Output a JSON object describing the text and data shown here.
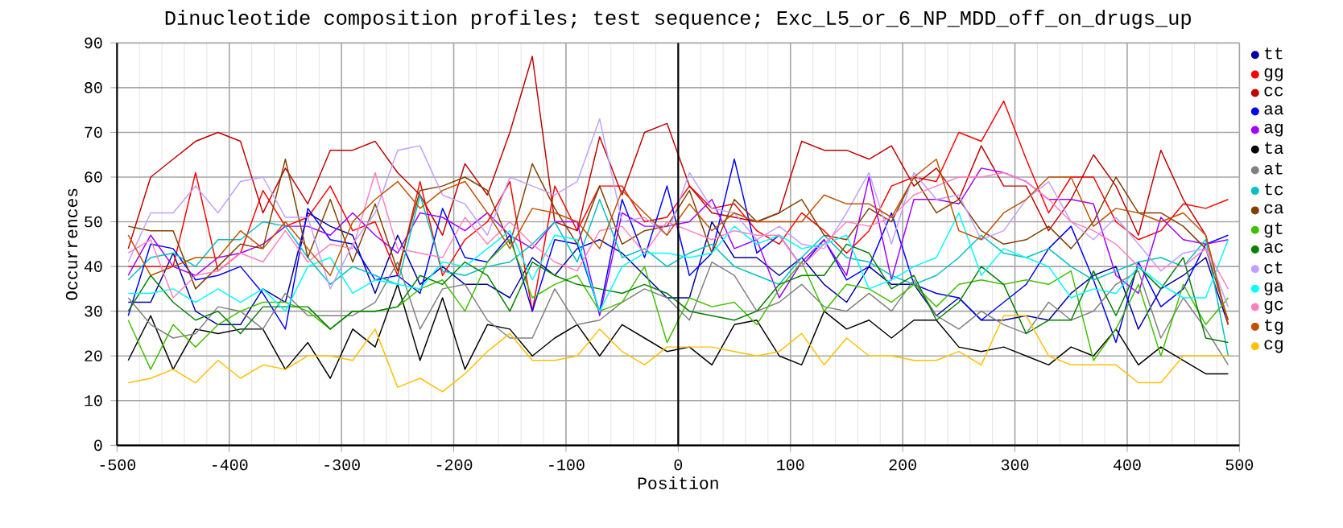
{
  "chart_data": {
    "type": "line",
    "title": "Dinucleotide composition profiles; test sequence; Exc_L5_or_6_NP_MDD_off_on_drugs_up",
    "xlabel": "Position",
    "ylabel": "Occurrences",
    "xlim": [
      -500,
      500
    ],
    "ylim": [
      0,
      90
    ],
    "xticks": [
      -500,
      -400,
      -300,
      -200,
      -100,
      0,
      100,
      200,
      300,
      400,
      500
    ],
    "yticks": [
      0,
      10,
      20,
      30,
      40,
      50,
      60,
      70,
      80,
      90
    ],
    "grid": true,
    "legend": "right",
    "marker": "none",
    "line_style": "solid",
    "ref_lines": [
      {
        "axis": "x",
        "value": 0,
        "color": "#000000"
      }
    ],
    "x": [
      -490,
      -470,
      -450,
      -430,
      -410,
      -390,
      -370,
      -350,
      -330,
      -310,
      -290,
      -270,
      -250,
      -230,
      -210,
      -190,
      -170,
      -150,
      -130,
      -110,
      -90,
      -70,
      -50,
      -30,
      -10,
      10,
      30,
      50,
      70,
      90,
      110,
      130,
      150,
      170,
      190,
      210,
      230,
      250,
      270,
      290,
      310,
      330,
      350,
      370,
      390,
      410,
      430,
      450,
      470,
      490
    ],
    "series": [
      {
        "name": "tt",
        "color": "#0000a0",
        "values": [
          32,
          32,
          43,
          30,
          27,
          27,
          35,
          32,
          52,
          49,
          47,
          34,
          47,
          36,
          40,
          36,
          36,
          33,
          42,
          38,
          44,
          46,
          43,
          38,
          33,
          33,
          50,
          42,
          42,
          38,
          42,
          36,
          32,
          40,
          36,
          36,
          29,
          33,
          28,
          28,
          29,
          28,
          34,
          38,
          40,
          26,
          35,
          38,
          42,
          27
        ]
      },
      {
        "name": "gg",
        "color": "#ff0000",
        "values": [
          40,
          40,
          40,
          61,
          39,
          43,
          57,
          49,
          51,
          58,
          48,
          50,
          38,
          59,
          38,
          46,
          50,
          59,
          30,
          58,
          48,
          58,
          58,
          50,
          51,
          58,
          53,
          54,
          48,
          45,
          52,
          48,
          43,
          48,
          58,
          60,
          59,
          70,
          68,
          77,
          64,
          52,
          60,
          60,
          50,
          46,
          48,
          54,
          53,
          55
        ]
      },
      {
        "name": "cc",
        "color": "#c00000",
        "values": [
          44,
          60,
          64,
          68,
          70,
          68,
          52,
          62,
          54,
          66,
          66,
          68,
          61,
          56,
          47,
          63,
          56,
          70,
          87,
          50,
          48,
          69,
          56,
          70,
          72,
          58,
          52,
          51,
          50,
          52,
          68,
          66,
          66,
          64,
          67,
          58,
          62,
          55,
          67,
          58,
          58,
          48,
          55,
          65,
          58,
          47,
          66,
          55,
          47,
          27
        ]
      },
      {
        "name": "aa",
        "color": "#0000ff",
        "values": [
          29,
          45,
          44,
          37,
          38,
          40,
          34,
          26,
          53,
          46,
          45,
          37,
          38,
          34,
          53,
          42,
          41,
          47,
          30,
          46,
          45,
          30,
          55,
          42,
          58,
          38,
          43,
          64,
          43,
          47,
          40,
          46,
          37,
          40,
          52,
          36,
          34,
          33,
          28,
          32,
          36,
          44,
          49,
          37,
          23,
          41,
          31,
          35,
          45,
          47
        ]
      },
      {
        "name": "ag",
        "color": "#a000ff",
        "values": [
          38,
          47,
          40,
          38,
          42,
          43,
          45,
          49,
          49,
          47,
          52,
          47,
          43,
          52,
          51,
          48,
          52,
          47,
          44,
          50,
          50,
          29,
          52,
          49,
          49,
          50,
          55,
          44,
          46,
          33,
          41,
          46,
          38,
          60,
          37,
          55,
          55,
          54,
          62,
          61,
          59,
          55,
          55,
          54,
          38,
          34,
          51,
          46,
          45,
          46
        ]
      },
      {
        "name": "ta",
        "color": "#000000",
        "values": [
          19,
          29,
          17,
          26,
          25,
          26,
          26,
          17,
          23,
          15,
          26,
          22,
          36,
          19,
          33,
          17,
          27,
          26,
          20,
          24,
          27,
          20,
          27,
          24,
          21,
          22,
          18,
          27,
          28,
          20,
          18,
          30,
          26,
          28,
          24,
          28,
          28,
          22,
          21,
          22,
          20,
          18,
          22,
          20,
          26,
          18,
          22,
          19,
          16,
          16
        ]
      },
      {
        "name": "at",
        "color": "#808080",
        "values": [
          33,
          27,
          24,
          25,
          31,
          30,
          26,
          34,
          29,
          29,
          29,
          32,
          41,
          26,
          35,
          36,
          28,
          24,
          24,
          35,
          27,
          28,
          32,
          35,
          33,
          28,
          41,
          38,
          30,
          32,
          36,
          31,
          30,
          34,
          30,
          37,
          29,
          26,
          30,
          27,
          25,
          32,
          28,
          30,
          36,
          39,
          24,
          33,
          26,
          18
        ]
      },
      {
        "name": "tc",
        "color": "#00c0c0",
        "values": [
          37,
          42,
          43,
          40,
          46,
          46,
          50,
          49,
          42,
          36,
          40,
          38,
          36,
          56,
          39,
          38,
          40,
          41,
          45,
          50,
          41,
          55,
          42,
          44,
          40,
          43,
          45,
          40,
          38,
          36,
          42,
          47,
          42,
          41,
          38,
          36,
          38,
          42,
          47,
          43,
          42,
          44,
          40,
          37,
          39,
          41,
          42,
          40,
          46,
          20
        ]
      },
      {
        "name": "ca",
        "color": "#804000",
        "values": [
          49,
          48,
          48,
          35,
          40,
          45,
          44,
          64,
          42,
          55,
          41,
          54,
          39,
          57,
          58,
          60,
          57,
          45,
          63,
          53,
          45,
          58,
          45,
          48,
          49,
          57,
          43,
          55,
          50,
          52,
          55,
          47,
          46,
          53,
          50,
          60,
          52,
          55,
          48,
          45,
          46,
          49,
          44,
          50,
          60,
          52,
          52,
          49,
          44,
          28
        ]
      },
      {
        "name": "gt",
        "color": "#40c000",
        "values": [
          28,
          17,
          27,
          22,
          27,
          30,
          32,
          32,
          30,
          26,
          30,
          30,
          31,
          35,
          37,
          30,
          41,
          46,
          33,
          36,
          38,
          30,
          32,
          40,
          23,
          33,
          31,
          32,
          27,
          35,
          41,
          30,
          36,
          35,
          32,
          36,
          31,
          36,
          37,
          36,
          37,
          36,
          39,
          19,
          26,
          36,
          20,
          36,
          27,
          33
        ]
      },
      {
        "name": "ac",
        "color": "#008000",
        "values": [
          30,
          38,
          32,
          28,
          30,
          25,
          31,
          31,
          31,
          26,
          30,
          30,
          31,
          38,
          36,
          41,
          38,
          30,
          41,
          38,
          36,
          35,
          34,
          36,
          34,
          30,
          29,
          28,
          30,
          36,
          38,
          38,
          45,
          43,
          35,
          38,
          28,
          32,
          40,
          36,
          25,
          28,
          28,
          39,
          29,
          40,
          35,
          42,
          24,
          23
        ]
      },
      {
        "name": "ct",
        "color": "#c0a0ff",
        "values": [
          41,
          52,
          52,
          58,
          52,
          59,
          60,
          51,
          51,
          35,
          45,
          52,
          66,
          67,
          56,
          54,
          47,
          60,
          58,
          56,
          59,
          73,
          50,
          51,
          47,
          61,
          53,
          52,
          46,
          49,
          45,
          44,
          52,
          61,
          45,
          61,
          55,
          56,
          46,
          48,
          55,
          59,
          50,
          46,
          51,
          45,
          39,
          43,
          44,
          31
        ]
      },
      {
        "name": "ga",
        "color": "#00ffff",
        "values": [
          34,
          34,
          35,
          32,
          35,
          32,
          35,
          30,
          40,
          42,
          34,
          37,
          36,
          35,
          41,
          40,
          44,
          48,
          37,
          47,
          46,
          30,
          40,
          43,
          43,
          42,
          43,
          49,
          45,
          47,
          44,
          45,
          47,
          35,
          37,
          40,
          42,
          52,
          38,
          44,
          42,
          40,
          33,
          35,
          34,
          40,
          36,
          33,
          33,
          46
        ]
      },
      {
        "name": "gc",
        "color": "#ff80c0",
        "values": [
          43,
          46,
          33,
          38,
          39,
          43,
          41,
          48,
          41,
          45,
          44,
          61,
          44,
          43,
          42,
          51,
          45,
          50,
          45,
          41,
          39,
          48,
          49,
          43,
          50,
          48,
          46,
          48,
          47,
          47,
          40,
          45,
          50,
          49,
          51,
          56,
          58,
          60,
          60,
          61,
          59,
          55,
          50,
          48,
          45,
          40,
          40,
          40,
          44,
          35
        ]
      },
      {
        "name": "tg",
        "color": "#c05000",
        "values": [
          47,
          38,
          40,
          42,
          42,
          48,
          44,
          50,
          44,
          38,
          50,
          55,
          59,
          53,
          57,
          59,
          52,
          44,
          53,
          52,
          50,
          44,
          57,
          52,
          47,
          54,
          48,
          52,
          50,
          50,
          50,
          56,
          54,
          54,
          51,
          60,
          64,
          48,
          46,
          52,
          55,
          60,
          60,
          49,
          53,
          52,
          50,
          52,
          47,
          27
        ]
      },
      {
        "name": "cg",
        "color": "#ffc000",
        "values": [
          14,
          15,
          17,
          14,
          19,
          15,
          18,
          17,
          20,
          20,
          19,
          26,
          13,
          15,
          12,
          16,
          21,
          25,
          19,
          19,
          20,
          26,
          21,
          18,
          22,
          22,
          22,
          21,
          20,
          21,
          25,
          18,
          24,
          20,
          20,
          19,
          19,
          21,
          18,
          29,
          29,
          20,
          18,
          18,
          18,
          14,
          14,
          20,
          20,
          20
        ]
      }
    ]
  }
}
